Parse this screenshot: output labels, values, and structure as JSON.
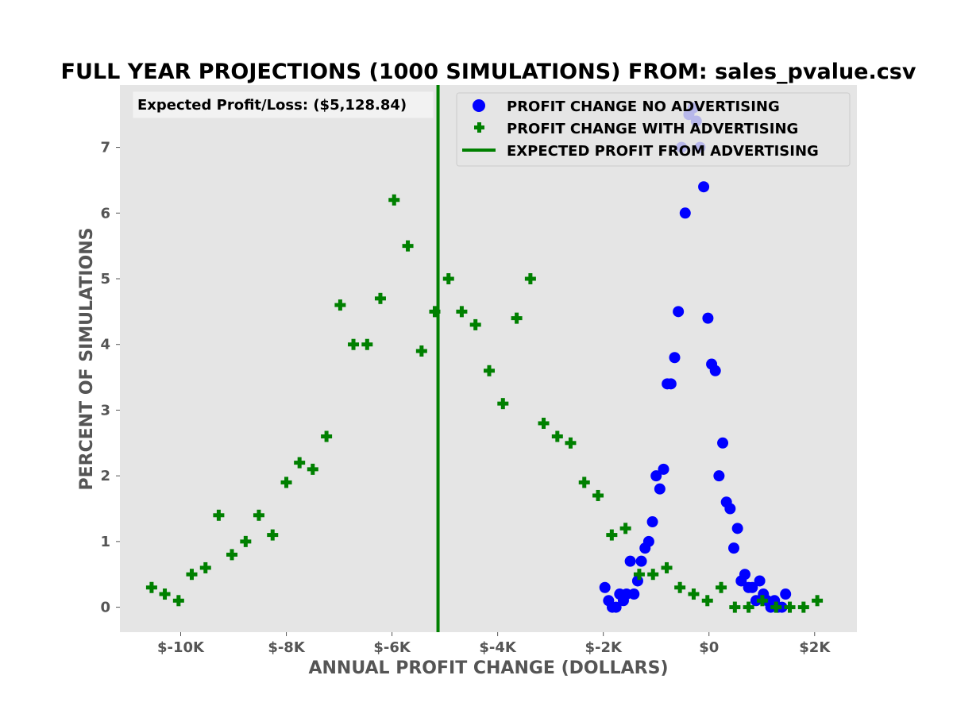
{
  "colors": {
    "plot_background": "#e5e5e5",
    "no_advertising": "#0000ff",
    "with_advertising": "#008000",
    "expected_line": "#008000",
    "tick_text": "#555555"
  },
  "chart_data": {
    "type": "scatter",
    "title": "FULL YEAR PROJECTIONS (1000 SIMULATIONS)  FROM: sales_pvalue.csv",
    "xlabel": "ANNUAL PROFIT CHANGE (DOLLARS)",
    "ylabel": "PERCENT OF SIMULATIONS",
    "xlim": [
      -11150,
      2800
    ],
    "ylim": [
      -0.38,
      7.95
    ],
    "xticks": [
      -10000,
      -8000,
      -6000,
      -4000,
      -2000,
      0,
      2000
    ],
    "xtick_labels": [
      "$-10K",
      "$-8K",
      "$-6K",
      "$-4K",
      "$-2K",
      "$0",
      "$2K"
    ],
    "yticks": [
      0,
      1,
      2,
      3,
      4,
      5,
      6,
      7
    ],
    "ytick_labels": [
      "0",
      "1",
      "2",
      "3",
      "4",
      "5",
      "6",
      "7"
    ],
    "grid": false,
    "legend_position": "top-right",
    "annotation": "Expected Profit/Loss: ($5,128.84)",
    "series": [
      {
        "name": "PROFIT CHANGE NO ADVERTISING",
        "marker": "circle",
        "color": "#0000ff",
        "points": [
          [
            -1970,
            0.3
          ],
          [
            -1900,
            0.1
          ],
          [
            -1830,
            0.0
          ],
          [
            -1760,
            0.0
          ],
          [
            -1690,
            0.2
          ],
          [
            -1620,
            0.1
          ],
          [
            -1560,
            0.2
          ],
          [
            -1490,
            0.7
          ],
          [
            -1420,
            0.2
          ],
          [
            -1350,
            0.4
          ],
          [
            -1280,
            0.7
          ],
          [
            -1210,
            0.9
          ],
          [
            -1140,
            1.0
          ],
          [
            -1070,
            1.3
          ],
          [
            -1000,
            2.0
          ],
          [
            -930,
            1.8
          ],
          [
            -860,
            2.1
          ],
          [
            -790,
            3.4
          ],
          [
            -720,
            3.4
          ],
          [
            -650,
            3.8
          ],
          [
            -580,
            4.5
          ],
          [
            -520,
            7.0
          ],
          [
            -450,
            6.0
          ],
          [
            -380,
            7.5
          ],
          [
            -300,
            7.6
          ],
          [
            -240,
            7.4
          ],
          [
            -170,
            7.0
          ],
          [
            -100,
            6.4
          ],
          [
            -20,
            4.4
          ],
          [
            50,
            3.7
          ],
          [
            120,
            3.6
          ],
          [
            190,
            2.0
          ],
          [
            260,
            2.5
          ],
          [
            330,
            1.6
          ],
          [
            400,
            1.5
          ],
          [
            470,
            0.9
          ],
          [
            540,
            1.2
          ],
          [
            610,
            0.4
          ],
          [
            680,
            0.5
          ],
          [
            750,
            0.3
          ],
          [
            820,
            0.3
          ],
          [
            890,
            0.1
          ],
          [
            960,
            0.4
          ],
          [
            1030,
            0.2
          ],
          [
            1100,
            0.1
          ],
          [
            1170,
            0.0
          ],
          [
            1240,
            0.1
          ],
          [
            1310,
            0.0
          ],
          [
            1380,
            0.0
          ],
          [
            1450,
            0.2
          ]
        ]
      },
      {
        "name": "PROFIT CHANGE WITH ADVERTISING",
        "marker": "plus",
        "color": "#008000",
        "points": [
          [
            -10550,
            0.3
          ],
          [
            -10300,
            0.2
          ],
          [
            -10040,
            0.1
          ],
          [
            -9790,
            0.5
          ],
          [
            -9530,
            0.6
          ],
          [
            -9280,
            1.4
          ],
          [
            -9030,
            0.8
          ],
          [
            -8770,
            1.0
          ],
          [
            -8520,
            1.4
          ],
          [
            -8260,
            1.1
          ],
          [
            -8000,
            1.9
          ],
          [
            -7750,
            2.2
          ],
          [
            -7500,
            2.1
          ],
          [
            -7240,
            2.6
          ],
          [
            -6980,
            4.6
          ],
          [
            -6730,
            4.0
          ],
          [
            -6470,
            4.0
          ],
          [
            -6220,
            4.7
          ],
          [
            -5960,
            6.2
          ],
          [
            -5700,
            5.5
          ],
          [
            -5440,
            3.9
          ],
          [
            -5190,
            4.5
          ],
          [
            -4930,
            5.0
          ],
          [
            -4680,
            4.5
          ],
          [
            -4420,
            4.3
          ],
          [
            -4160,
            3.6
          ],
          [
            -3900,
            3.1
          ],
          [
            -3640,
            4.4
          ],
          [
            -3380,
            5.0
          ],
          [
            -3130,
            2.8
          ],
          [
            -2870,
            2.6
          ],
          [
            -2620,
            2.5
          ],
          [
            -2360,
            1.9
          ],
          [
            -2100,
            1.7
          ],
          [
            -1840,
            1.1
          ],
          [
            -1580,
            1.2
          ],
          [
            -1320,
            0.5
          ],
          [
            -1060,
            0.5
          ],
          [
            -800,
            0.6
          ],
          [
            -550,
            0.3
          ],
          [
            -290,
            0.2
          ],
          [
            -30,
            0.1
          ],
          [
            230,
            0.3
          ],
          [
            490,
            0.0
          ],
          [
            750,
            0.0
          ],
          [
            1010,
            0.1
          ],
          [
            1270,
            0.0
          ],
          [
            1530,
            0.0
          ],
          [
            1790,
            0.0
          ],
          [
            2050,
            0.1
          ]
        ]
      }
    ],
    "vertical_line": {
      "name": "EXPECTED PROFIT FROM ADVERTISING",
      "x": -5128.84,
      "color": "#008000"
    }
  }
}
